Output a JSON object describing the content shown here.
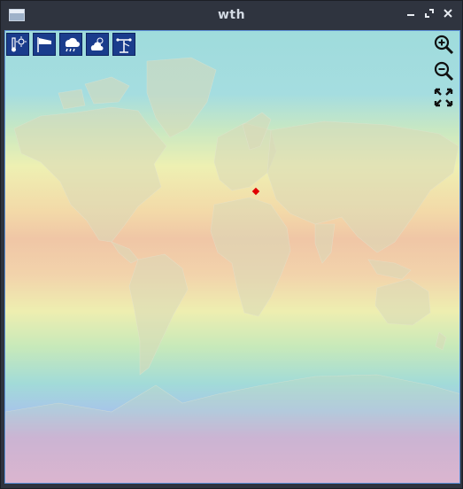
{
  "window": {
    "title": "wth",
    "controls": [
      "minimize",
      "maximize",
      "close"
    ]
  },
  "toolbar": {
    "tools": [
      {
        "name": "temperature",
        "icon": "thermometer-sun-icon"
      },
      {
        "name": "wind",
        "icon": "windsock-icon"
      },
      {
        "name": "precipitation",
        "icon": "rain-cloud-icon"
      },
      {
        "name": "clouds",
        "icon": "cloud-sun-icon"
      },
      {
        "name": "pressure",
        "icon": "weather-station-icon"
      }
    ]
  },
  "zoom": {
    "controls": [
      {
        "name": "zoom-in",
        "icon": "zoom-in-icon"
      },
      {
        "name": "zoom-out",
        "icon": "zoom-out-icon"
      },
      {
        "name": "fit",
        "icon": "fullscreen-icon"
      }
    ]
  },
  "colors": {
    "titlebar": "#2f343f",
    "title_text": "#d3dae3",
    "tool_bg": "#1a3c8c",
    "marker": "#e00000",
    "map_border": "#5a8fd6"
  }
}
